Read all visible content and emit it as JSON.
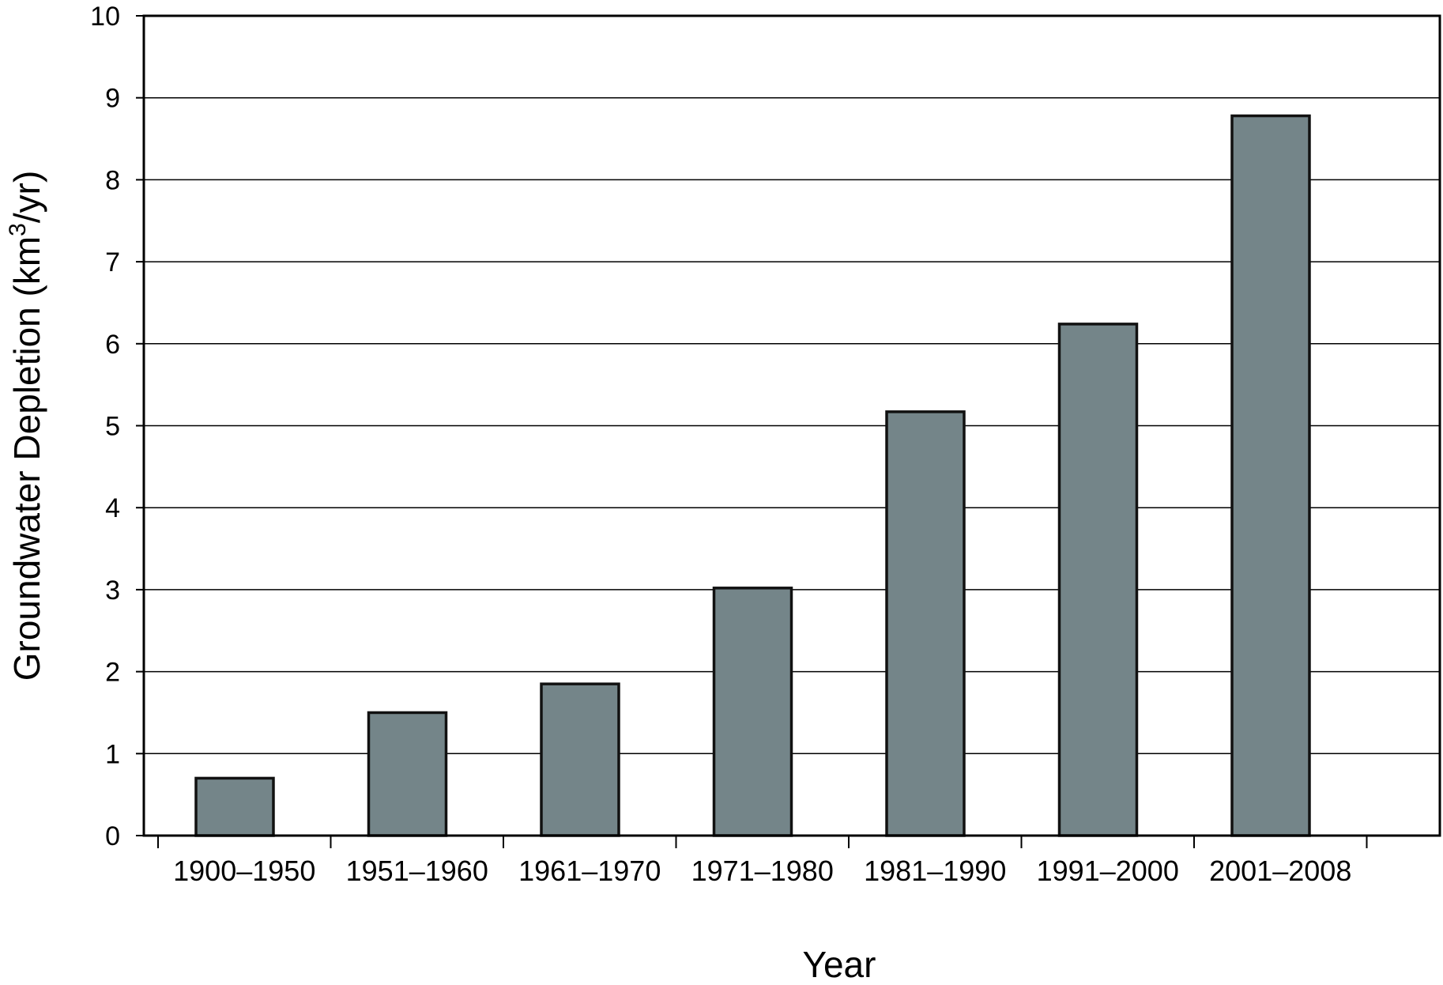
{
  "chart_data": {
    "type": "bar",
    "categories": [
      "1900–1950",
      "1951–1960",
      "1961–1970",
      "1971–1980",
      "1981–1990",
      "1991–2000",
      "2001–2008"
    ],
    "values": [
      0.7,
      1.5,
      1.85,
      3.02,
      5.17,
      6.24,
      8.78
    ],
    "xlabel": "Year",
    "ylabel": {
      "prefix": "Groundwater Depletion (km",
      "superscript": "3",
      "suffix": "/yr)"
    },
    "ylim": [
      0,
      10
    ],
    "yticks": [
      "0",
      "1",
      "2",
      "3",
      "4",
      "5",
      "6",
      "7",
      "8",
      "9",
      "10"
    ],
    "grid": "horizontal",
    "bar_color": "#748589",
    "edge_color": "#111111"
  }
}
